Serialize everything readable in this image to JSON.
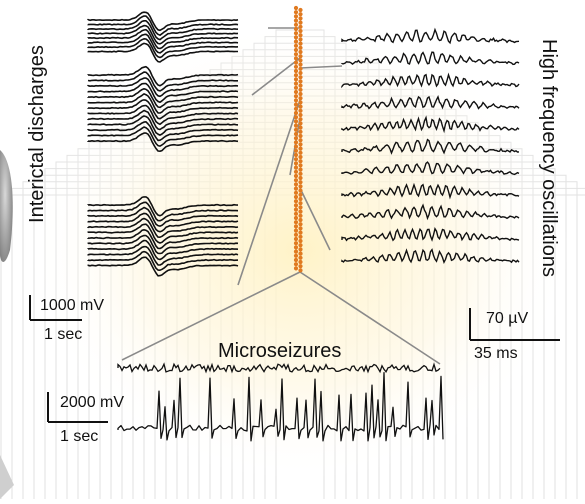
{
  "labels": {
    "interictal": "Interictal discharges",
    "hfo": "High frequency oscillations",
    "microseizures": "Microseizures"
  },
  "scalebars": {
    "interictal_amp": "1000 mV",
    "interictal_time": "1 sec",
    "hfo_amp": "70 µV",
    "hfo_time": "35 ms",
    "micro_amp": "2000 mV",
    "micro_time": "1 sec"
  },
  "colors": {
    "electrode": "#e07a20",
    "trace": "#111111",
    "connector": "#8a8a8a",
    "background_lines": "#e2e2e2",
    "glow": "#fff2c4",
    "tissue": "#9a9a9a"
  }
}
